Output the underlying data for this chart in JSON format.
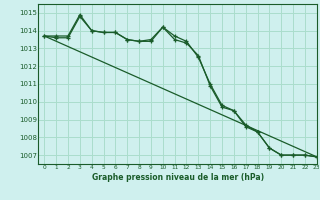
{
  "title": "Graphe pression niveau de la mer (hPa)",
  "background_color": "#cff0ee",
  "grid_color": "#aaddcc",
  "line_color": "#1a5c2a",
  "marker_color": "#1a5c2a",
  "xlim": [
    -0.5,
    23
  ],
  "ylim": [
    1006.5,
    1015.5
  ],
  "yticks": [
    1007,
    1008,
    1009,
    1010,
    1011,
    1012,
    1013,
    1014,
    1015
  ],
  "xticks": [
    0,
    1,
    2,
    3,
    4,
    5,
    6,
    7,
    8,
    9,
    10,
    11,
    12,
    13,
    14,
    15,
    16,
    17,
    18,
    19,
    20,
    21,
    22,
    23
  ],
  "series1_x": [
    0,
    1,
    2,
    3,
    4,
    5,
    6,
    7,
    8,
    9,
    10,
    11,
    12,
    13,
    14,
    15,
    16,
    17,
    18,
    19,
    20,
    21,
    22,
    23
  ],
  "series1_y": [
    1013.7,
    1013.6,
    1013.6,
    1014.8,
    1014.0,
    1013.9,
    1013.9,
    1013.5,
    1013.4,
    1013.4,
    1014.2,
    1013.5,
    1013.3,
    1012.6,
    1010.9,
    1009.7,
    1009.5,
    1008.7,
    1008.3,
    1007.4,
    1007.0,
    1007.0,
    1007.0,
    1006.9
  ],
  "series2_x": [
    0,
    1,
    2,
    3,
    4,
    5,
    6,
    7,
    8,
    9,
    10,
    11,
    12,
    13,
    14,
    15,
    16,
    17,
    18,
    19,
    20,
    21,
    22,
    23
  ],
  "series2_y": [
    1013.7,
    1013.7,
    1013.7,
    1014.9,
    1014.0,
    1013.9,
    1013.9,
    1013.5,
    1013.4,
    1013.5,
    1014.2,
    1013.7,
    1013.4,
    1012.5,
    1011.0,
    1009.8,
    1009.5,
    1008.6,
    1008.3,
    1007.4,
    1007.0,
    1007.0,
    1007.0,
    1006.9
  ],
  "series3_x": [
    0,
    23
  ],
  "series3_y": [
    1013.7,
    1006.9
  ]
}
